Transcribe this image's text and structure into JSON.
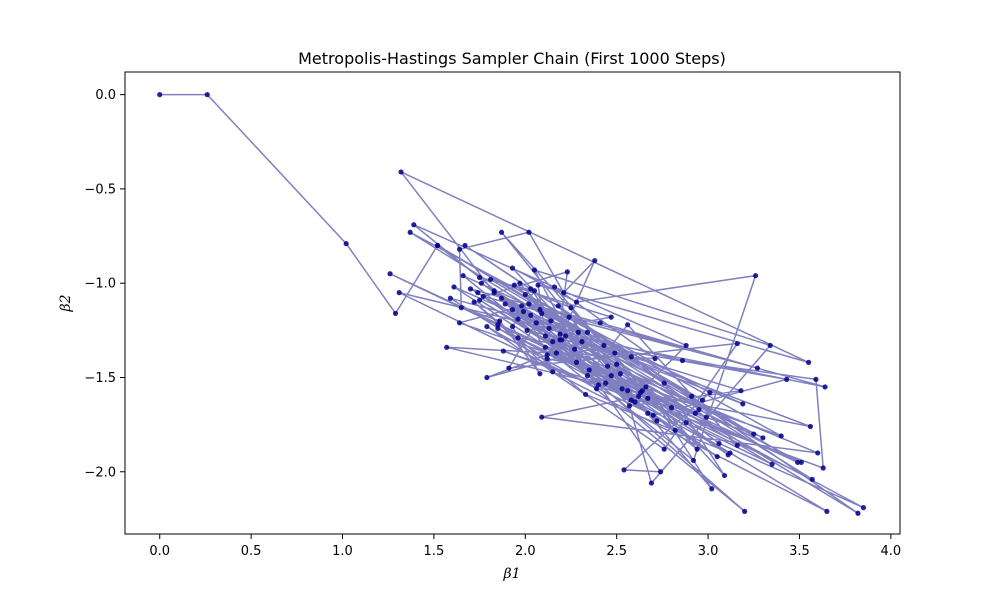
{
  "chart_data": {
    "type": "line",
    "title": "Metropolis-Hastings Sampler Chain (First 1000 Steps)",
    "xlabel": "β1",
    "ylabel": "β2",
    "xlim": [
      -0.19,
      4.05
    ],
    "ylim": [
      -2.33,
      0.12
    ],
    "x_ticks": [
      0.0,
      0.5,
      1.0,
      1.5,
      2.0,
      2.5,
      3.0,
      3.5,
      4.0
    ],
    "y_ticks": [
      0.0,
      -0.5,
      -1.0,
      -1.5,
      -2.0
    ],
    "x_tick_labels": [
      "0.0",
      "0.5",
      "1.0",
      "1.5",
      "2.0",
      "2.5",
      "3.0",
      "3.5",
      "4.0"
    ],
    "y_tick_labels": [
      "0.0",
      "−0.5",
      "−1.0",
      "−1.5",
      "−2.0"
    ],
    "grid": false,
    "legend": "none",
    "line_color": "#8080c0",
    "marker_color": "#00008b",
    "series": [
      {
        "x": [
          0.0,
          0.26,
          1.02,
          1.29,
          1.52,
          1.75,
          2.05,
          1.93,
          2.08,
          1.86,
          1.65,
          1.64,
          2.02,
          2.21,
          2.38,
          2.19,
          1.98,
          2.12,
          1.79,
          2.43,
          2.16,
          2.71,
          1.57,
          2.56,
          1.93,
          2.28,
          3.26,
          2.92,
          1.66,
          2.34,
          1.93,
          2.44,
          1.74,
          2.58,
          2.88,
          1.39,
          2.67,
          1.87,
          2.94,
          1.83,
          1.32,
          3.55,
          2.07,
          2.11,
          2.24,
          2.91,
          1.67,
          2.03,
          2.74,
          2.54,
          3.01,
          1.37,
          2.99,
          1.85,
          2.17,
          2.23,
          1.77,
          3.27,
          2.41,
          2.02,
          1.64,
          2.66,
          3.02,
          2.29,
          1.59,
          2.12,
          2.52,
          2.69,
          3.34,
          2.05,
          2.39,
          1.79,
          2.76,
          3.16,
          1.91,
          2.09,
          3.19,
          2.13,
          2.47,
          1.81,
          3.49,
          2.64,
          1.26,
          2.28,
          2.49,
          1.96,
          3.12,
          2.33,
          1.72,
          2.15,
          3.65,
          2.01,
          2.58,
          2.76,
          3.09,
          2.25,
          1.94,
          3.06,
          3.85,
          2.15,
          2.53,
          1.75,
          2.88,
          3.35,
          2.45,
          3.6,
          2.09,
          2.62,
          1.88,
          3.63,
          3.59,
          2.86,
          1.31,
          2.7,
          3.43,
          2.2,
          1.99,
          2.97,
          1.52,
          3.25,
          2.34,
          2.56,
          3.16,
          1.85,
          2.67,
          3.51,
          2.95,
          2.18,
          3.82,
          2.03,
          2.5,
          1.87,
          3.2,
          2.11,
          2.82,
          1.61,
          2.06,
          3.56,
          2.4,
          2.63,
          1.96,
          3.3,
          2.19,
          3.64,
          1.7,
          2.27,
          2.8,
          2.14,
          3.11,
          1.89,
          2.47,
          3.4,
          2.0,
          2.6,
          3.05,
          1.76,
          2.22,
          2.93,
          2.35,
          3.57,
          2.08,
          2.72,
          1.83,
          2.31,
          3.18,
          2.57,
          1.97
        ],
        "y": [
          0.0,
          0.0,
          -0.79,
          -1.16,
          -0.8,
          -0.97,
          -1.04,
          -1.23,
          -1.48,
          -1.2,
          -1.13,
          -0.82,
          -0.73,
          -1.05,
          -0.88,
          -1.3,
          -1.12,
          -1.38,
          -1.5,
          -1.33,
          -1.02,
          -1.4,
          -1.34,
          -1.57,
          -0.92,
          -1.1,
          -0.96,
          -1.94,
          -0.96,
          -1.26,
          -1.14,
          -1.53,
          -1.05,
          -1.62,
          -1.33,
          -0.69,
          -1.69,
          -0.73,
          -1.88,
          -1.05,
          -0.41,
          -1.42,
          -1.01,
          -1.28,
          -1.18,
          -1.6,
          -0.8,
          -1.03,
          -2.0,
          -1.99,
          -1.58,
          -0.73,
          -1.71,
          -1.22,
          -1.37,
          -0.94,
          -1.07,
          -1.45,
          -1.21,
          -1.11,
          -1.21,
          -1.55,
          -2.09,
          -1.26,
          -1.08,
          -1.4,
          -1.48,
          -2.06,
          -1.33,
          -0.93,
          -1.56,
          -1.23,
          -1.88,
          -1.32,
          -1.45,
          -1.16,
          -1.64,
          -1.24,
          -1.18,
          -0.98,
          -1.95,
          -1.57,
          -0.95,
          -1.42,
          -1.37,
          -1.29,
          -1.9,
          -1.59,
          -1.1,
          -1.47,
          -2.21,
          -1.25,
          -1.39,
          -1.53,
          -2.02,
          -1.13,
          -1.01,
          -1.85,
          -2.19,
          -1.31,
          -1.56,
          -1.09,
          -1.74,
          -1.96,
          -1.44,
          -1.9,
          -1.71,
          -1.6,
          -1.36,
          -1.98,
          -1.51,
          -1.41,
          -1.05,
          -1.7,
          -1.51,
          -1.3,
          -1.15,
          -1.62,
          -0.8,
          -1.8,
          -1.49,
          -1.22,
          -1.86,
          -1.24,
          -1.61,
          -1.95,
          -1.67,
          -1.12,
          -2.22,
          -1.17,
          -1.43,
          -1.08,
          -2.21,
          -1.34,
          -1.78,
          -1.02,
          -1.21,
          -1.76,
          -1.54,
          -1.58,
          -1.19,
          -1.82,
          -1.27,
          -1.55,
          -1.03,
          -1.35,
          -1.66,
          -1.2,
          -1.91,
          -1.11,
          -1.49,
          -1.81,
          -1.06,
          -1.63,
          -1.92,
          -1.0,
          -1.28,
          -1.69,
          -1.46,
          -2.04,
          -1.14,
          -1.73,
          -1.04,
          -1.31,
          -1.57,
          -1.65,
          -1.0
        ]
      }
    ]
  }
}
